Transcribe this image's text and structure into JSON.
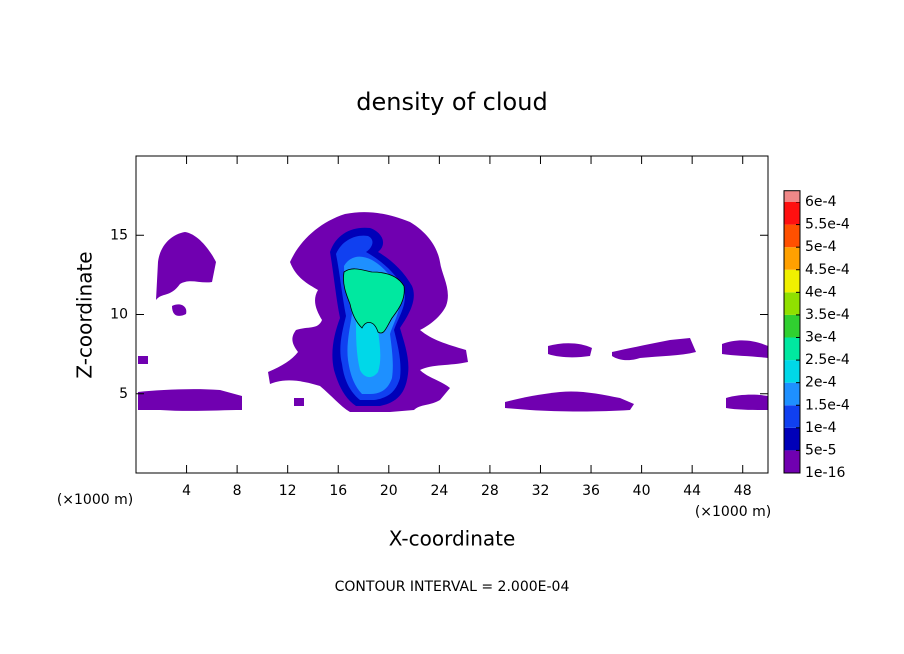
{
  "chart_data": {
    "type": "contour",
    "title": "density of cloud",
    "xlabel": "X-coordinate",
    "ylabel": "Z-coordinate",
    "x_unit_left": "(×1000 m)",
    "x_unit_right": "(×1000 m)",
    "note": "CONTOUR INTERVAL = 2.000E-04",
    "xlim": [
      0,
      50
    ],
    "xticks": [
      4,
      8,
      12,
      16,
      20,
      24,
      28,
      32,
      36,
      40,
      44,
      48
    ],
    "ylim": [
      0,
      20
    ],
    "yticks": [
      5,
      10,
      15
    ],
    "levels": [
      1e-16,
      {
        "value": 5e-05,
        "label": "5e-5"
      },
      {
        "value": 0.0001,
        "label": "1e-4"
      },
      {
        "value": 0.00015,
        "label": "1.5e-4"
      },
      {
        "value": 0.0002,
        "label": "2e-4"
      },
      {
        "value": 0.00025,
        "label": "2.5e-4"
      },
      {
        "value": 0.0003,
        "label": "3e-4"
      },
      {
        "value": 0.00035,
        "label": "3.5e-4"
      },
      {
        "value": 0.0004,
        "label": "4e-4"
      },
      {
        "value": 0.00045,
        "label": "4.5e-4"
      },
      {
        "value": 0.0005,
        "label": "5e-4"
      },
      {
        "value": 0.00055,
        "label": "5.5e-4"
      },
      {
        "value": 0.0006,
        "label": "6e-4"
      }
    ],
    "colors": [
      "#7000b0",
      "#0000b8",
      "#1040f0",
      "#1e90ff",
      "#00d8e8",
      "#00e8a0",
      "#30d030",
      "#90e000",
      "#f0f000",
      "#ffa000",
      "#ff5000",
      "#ff1010",
      "#f08888"
    ]
  }
}
